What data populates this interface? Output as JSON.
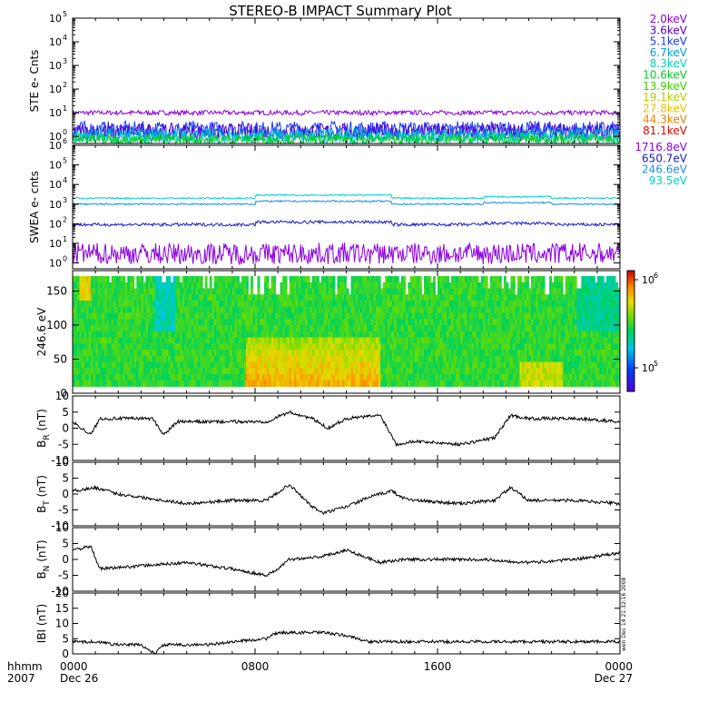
{
  "title": "STEREO-B IMPACT Summary Plot",
  "time_axis": {
    "corner_label_1": "hhmm",
    "corner_label_2": "2007",
    "ticks": [
      {
        "hour": 0,
        "label": "0000",
        "date": "Dec 26"
      },
      {
        "hour": 8,
        "label": "0800",
        "date": ""
      },
      {
        "hour": 16,
        "label": "1600",
        "date": ""
      },
      {
        "hour": 24,
        "label": "0000",
        "date": "Dec 27"
      }
    ],
    "range_hours": [
      0,
      24
    ]
  },
  "side_stamp": "wen Dec 14 21:32:16 2008",
  "colors": {
    "bg": "#ffffff",
    "axis": "#000000",
    "line": "#000000"
  },
  "chart_data": [
    {
      "id": "ste",
      "type": "line",
      "ylabel": "STE e- Cnts",
      "yscale": "log",
      "ylim": [
        0.5,
        100000
      ],
      "ytick_exponents": [
        0,
        1,
        2,
        3,
        4,
        5
      ],
      "legend": [
        {
          "label": "2.0keV",
          "color": "#8a00e0"
        },
        {
          "label": "3.6keV",
          "color": "#5000d0"
        },
        {
          "label": "5.1keV",
          "color": "#1a3cff"
        },
        {
          "label": "6.7keV",
          "color": "#00a0e0"
        },
        {
          "label": "8.3keV",
          "color": "#00d2b4"
        },
        {
          "label": "10.6keV",
          "color": "#00cc20"
        },
        {
          "label": "13.9keV",
          "color": "#40d000"
        },
        {
          "label": "19.1keV",
          "color": "#b0d000"
        },
        {
          "label": "27.8keV",
          "color": "#e8c000"
        },
        {
          "label": "44.3keV",
          "color": "#f08000"
        },
        {
          "label": "81.1keV",
          "color": "#e00000"
        }
      ],
      "series": [
        {
          "color": "#8a00e0",
          "level": 10,
          "spread": 0.1
        },
        {
          "color": "#1a3cff",
          "level": 2,
          "spread": 0.35
        },
        {
          "color": "#5000d0",
          "level": 1.6,
          "spread": 0.35
        },
        {
          "color": "#00a0e0",
          "level": 1.2,
          "spread": 0.3
        },
        {
          "color": "#00d2b4",
          "level": 0.9,
          "spread": 0.25
        },
        {
          "color": "#00cc20",
          "level": 0.75,
          "spread": 0.2
        }
      ]
    },
    {
      "id": "swea",
      "type": "line",
      "ylabel": "SWEA e- cnts",
      "yscale": "log",
      "ylim": [
        0.5,
        1000000
      ],
      "ytick_exponents": [
        0,
        1,
        2,
        3,
        4,
        5,
        6
      ],
      "legend": [
        {
          "label": "1716.8eV",
          "color": "#8a00e0"
        },
        {
          "label": "650.7eV",
          "color": "#1a1ad0"
        },
        {
          "label": "246.6eV",
          "color": "#1890e8"
        },
        {
          "label": "93.5eV",
          "color": "#00d2c8"
        }
      ],
      "series": [
        {
          "color": "#00d2c8",
          "level": 2000,
          "spread": 0.04,
          "bump": 1.45
        },
        {
          "color": "#1890e8",
          "level": 1000,
          "spread": 0.04,
          "bump": 1.4
        },
        {
          "color": "#1a1ad0",
          "level": 90,
          "spread": 0.08,
          "bump": 1.35
        },
        {
          "color": "#8a00e0",
          "level": 3,
          "spread": 0.55,
          "bump": 1.0
        }
      ]
    },
    {
      "id": "pad",
      "type": "heatmap",
      "ylabel": "246.6 eV",
      "ylim": [
        0,
        180
      ],
      "yticks": [
        0,
        50,
        100,
        150
      ],
      "colorbar": {
        "labels": [
          "10^6",
          "10^5"
        ],
        "exponents": [
          6,
          5
        ]
      }
    },
    {
      "id": "br",
      "type": "line",
      "ylabel_main": "B",
      "ylabel_sub": "R",
      "ylabel_unit": "(nT)",
      "ylim": [
        -10,
        10
      ],
      "yticks": [
        -10,
        -5,
        0,
        5,
        10
      ],
      "x": [
        0,
        0.8,
        1.2,
        2.0,
        3.5,
        4.0,
        4.6,
        6.0,
        8.5,
        9.5,
        10.5,
        11.2,
        12.0,
        13.5,
        14.2,
        15.0,
        17.0,
        18.5,
        19.2,
        20.0,
        22.0,
        24.0
      ],
      "y": [
        2,
        -2,
        3,
        3,
        3,
        -2,
        2,
        2,
        2,
        5,
        3,
        0,
        3,
        4,
        -5,
        -4,
        -5,
        -3,
        4,
        3,
        3,
        2
      ]
    },
    {
      "id": "bt",
      "type": "line",
      "ylabel_main": "B",
      "ylabel_sub": "T",
      "ylabel_unit": "(nT)",
      "ylim": [
        -10,
        10
      ],
      "yticks": [
        -10,
        -5,
        0,
        5,
        10
      ],
      "x": [
        0,
        1.0,
        2.0,
        3.0,
        4.0,
        5.0,
        7.0,
        8.5,
        9.5,
        10.5,
        11.0,
        12.0,
        13.0,
        14.0,
        14.4,
        15.0,
        17.0,
        18.5,
        19.2,
        20.0,
        22.0,
        24.0
      ],
      "y": [
        1,
        2,
        0,
        -1,
        -2,
        -3,
        -2,
        -2,
        3,
        -4,
        -6,
        -4,
        -1,
        1,
        -1,
        -2,
        -3,
        -2,
        2,
        -2,
        -2,
        -3
      ]
    },
    {
      "id": "bn",
      "type": "line",
      "ylabel_main": "B",
      "ylabel_sub": "N",
      "ylabel_unit": "(nT)",
      "ylim": [
        -10,
        10
      ],
      "yticks": [
        -10,
        -5,
        0,
        5,
        10
      ],
      "x": [
        0,
        0.8,
        1.2,
        3.0,
        5.0,
        7.0,
        8.5,
        9.0,
        9.5,
        11.0,
        12.0,
        13.5,
        14.5,
        16.0,
        18.0,
        20.0,
        22.0,
        24.0
      ],
      "y": [
        3,
        4,
        -3,
        -2,
        -1,
        -3,
        -5,
        -3,
        0,
        1,
        3,
        -1,
        0,
        0,
        0,
        -1,
        0,
        2
      ]
    },
    {
      "id": "bmag",
      "type": "line",
      "ylabel_main": "IBI",
      "ylabel_unit": "(nT)",
      "ylim": [
        0,
        20
      ],
      "yticks": [
        0,
        5,
        10,
        15,
        20
      ],
      "x": [
        0,
        1.0,
        2.0,
        3.0,
        3.6,
        4.0,
        5.0,
        6.0,
        7.0,
        8.5,
        9.0,
        10.0,
        11.0,
        12.0,
        13.0,
        14.0,
        16.0,
        18.0,
        20.0,
        22.0,
        24.0
      ],
      "y": [
        4,
        4,
        3,
        3,
        0,
        3,
        3,
        3,
        4,
        5,
        7,
        7,
        7,
        6,
        4,
        4,
        4,
        4,
        4,
        4,
        4
      ]
    }
  ]
}
